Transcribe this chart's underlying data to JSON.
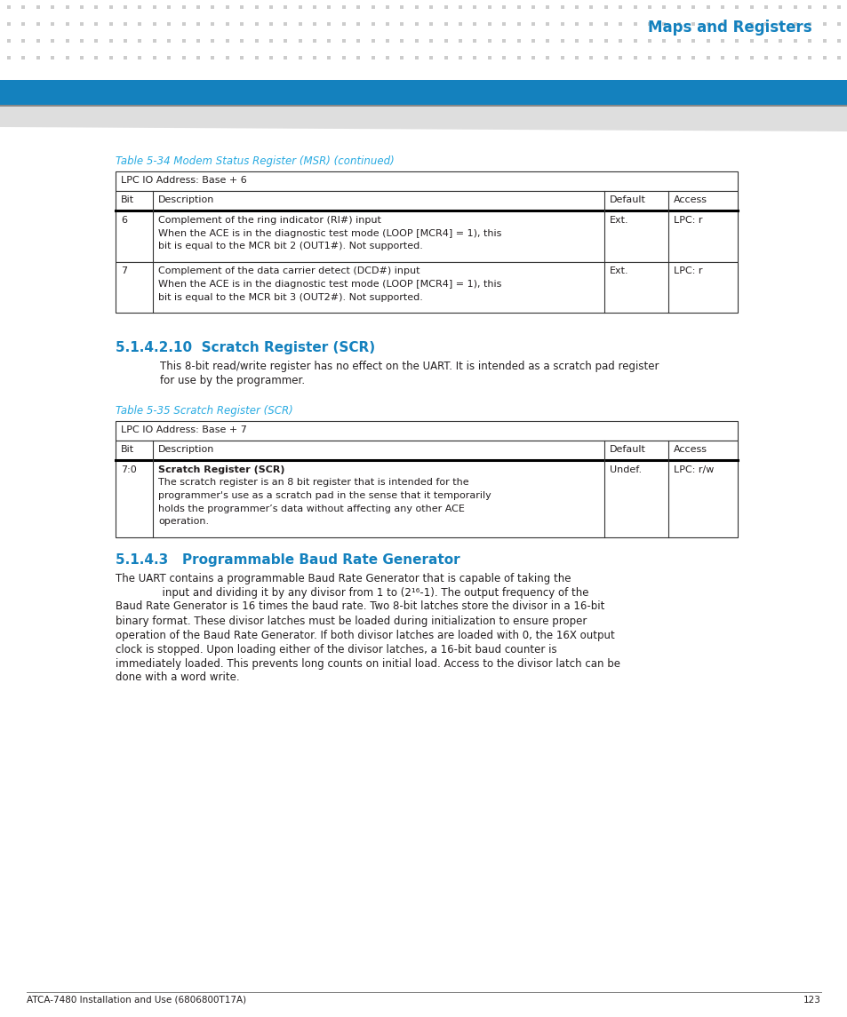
{
  "page_title": "Maps and Registers",
  "header_bar_color": "#1481be",
  "table_caption_color": "#29abe2",
  "section_heading_color": "#1481be",
  "text_color": "#231f20",
  "border_color": "#333333",
  "background_color": "#ffffff",
  "table1_caption": "Table 5-34 Modem Status Register (MSR) (continued)",
  "table1_address": "LPC IO Address: Base + 6",
  "table1_headers": [
    "Bit",
    "Description",
    "Default",
    "Access"
  ],
  "table1_rows": [
    {
      "bit": "6",
      "desc_bold": "",
      "desc_lines": [
        "Complement of the ring indicator (RI#) input",
        "When the ACE is in the diagnostic test mode (LOOP [MCR4] = 1), this",
        "bit is equal to the MCR bit 2 (OUT1#). Not supported."
      ],
      "default": "Ext.",
      "access": "LPC: r"
    },
    {
      "bit": "7",
      "desc_bold": "",
      "desc_lines": [
        "Complement of the data carrier detect (DCD#) input",
        "When the ACE is in the diagnostic test mode (LOOP [MCR4] = 1), this",
        "bit is equal to the MCR bit 3 (OUT2#). Not supported."
      ],
      "default": "Ext.",
      "access": "LPC: r"
    }
  ],
  "section1_heading": "5.1.4.2.10  Scratch Register (SCR)",
  "section1_body_lines": [
    "This 8-bit read/write register has no effect on the UART. It is intended as a scratch pad register",
    "for use by the programmer."
  ],
  "table2_caption": "Table 5-35 Scratch Register (SCR)",
  "table2_address": "LPC IO Address: Base + 7",
  "table2_headers": [
    "Bit",
    "Description",
    "Default",
    "Access"
  ],
  "table2_rows": [
    {
      "bit": "7:0",
      "desc_bold": "Scratch Register (SCR)",
      "desc_lines": [
        "The scratch register is an 8 bit register that is intended for the",
        "programmer's use as a scratch pad in the sense that it temporarily",
        "holds the programmer’s data without affecting any other ACE",
        "operation."
      ],
      "default": "Undef.",
      "access": "LPC: r/w"
    }
  ],
  "section2_heading": "5.1.4.3   Programmable Baud Rate Generator",
  "section2_body_lines": [
    "The UART contains a programmable Baud Rate Generator that is capable of taking the",
    "              input and dividing it by any divisor from 1 to (2¹⁶-1). The output frequency of the",
    "Baud Rate Generator is 16 times the baud rate. Two 8-bit latches store the divisor in a 16-bit",
    "binary format. These divisor latches must be loaded during initialization to ensure proper",
    "operation of the Baud Rate Generator. If both divisor latches are loaded with 0, the 16X output",
    "clock is stopped. Upon loading either of the divisor latches, a 16-bit baud counter is",
    "immediately loaded. This prevents long counts on initial load. Access to the divisor latch can be",
    "done with a word write."
  ],
  "footer_text": "ATCA-7480 Installation and Use (6806800T17A)",
  "footer_page": "123",
  "dot_cols": 58,
  "dot_rows": 4,
  "dot_color": "#cccccc",
  "dot_size": 2.8
}
